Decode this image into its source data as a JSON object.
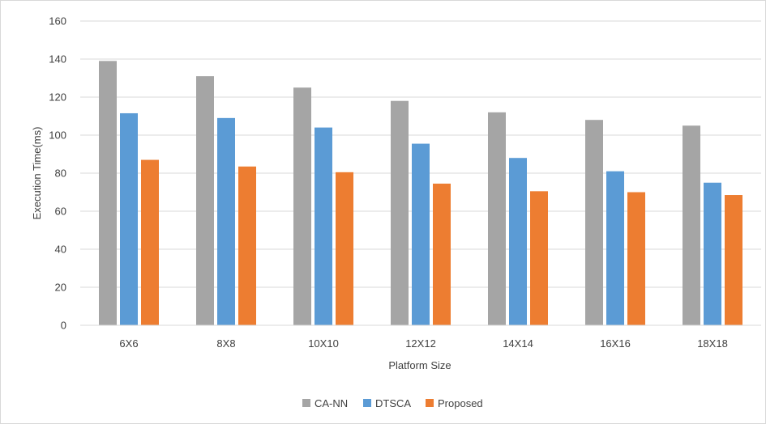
{
  "chart_data": {
    "type": "bar",
    "title": "",
    "xlabel": "Platform Size",
    "ylabel": "Execution Time(ms)",
    "ylim": [
      0,
      160
    ],
    "yticks": [
      0,
      20,
      40,
      60,
      80,
      100,
      120,
      140,
      160
    ],
    "grid": true,
    "legend_position": "bottom",
    "categories": [
      "6X6",
      "8X8",
      "10X10",
      "12X12",
      "14X14",
      "16X16",
      "18X18"
    ],
    "series": [
      {
        "name": "CA-NN",
        "color": "#a5a5a5",
        "values": [
          139,
          131,
          125,
          118,
          112,
          108,
          105
        ]
      },
      {
        "name": "DTSCA",
        "color": "#5b9bd5",
        "values": [
          111.5,
          109,
          104,
          95.5,
          88,
          81,
          75
        ]
      },
      {
        "name": "Proposed",
        "color": "#ed7d31",
        "values": [
          87,
          83.5,
          80.5,
          74.5,
          70.5,
          70,
          68.5
        ]
      }
    ]
  }
}
